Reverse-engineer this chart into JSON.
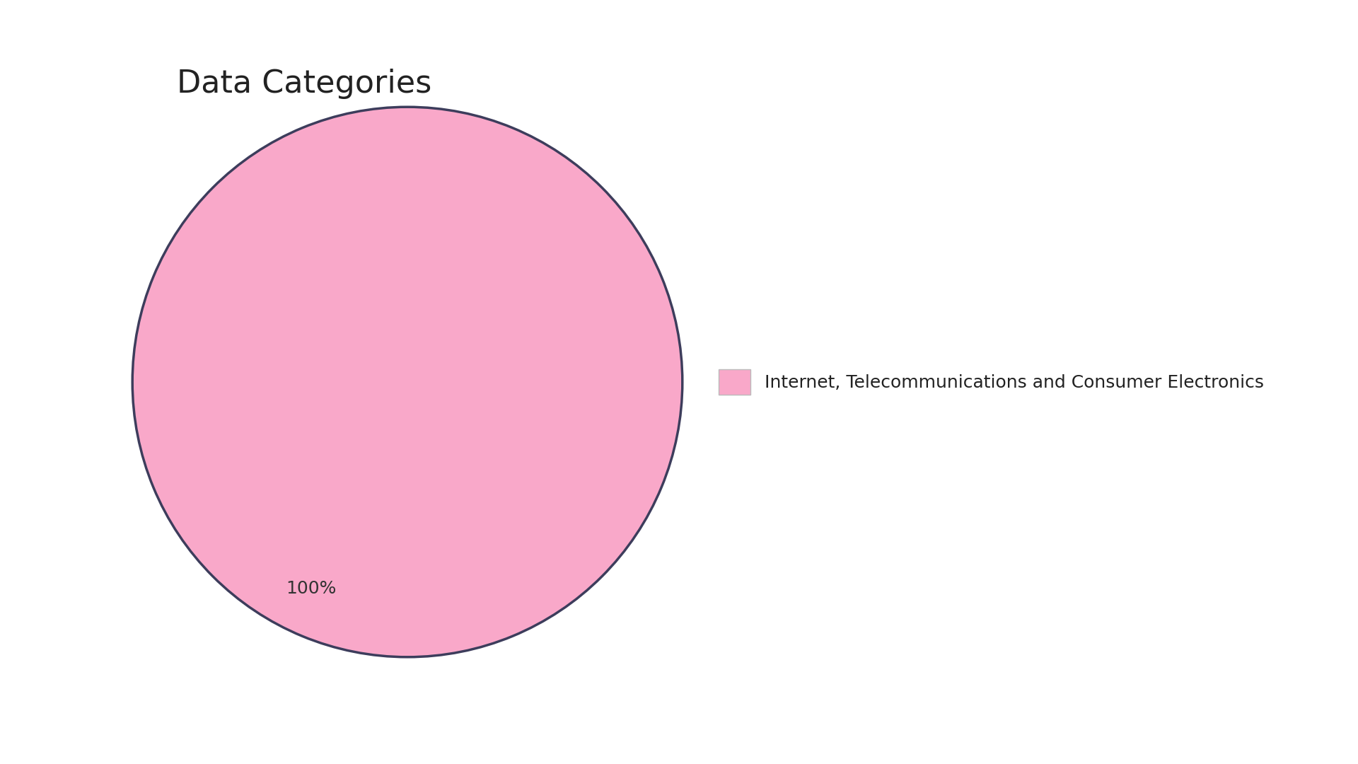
{
  "title": "Data Categories",
  "slices": [
    100
  ],
  "labels": [
    "Internet, Telecommunications and Consumer Electronics"
  ],
  "colors": [
    "#F9A8C9"
  ],
  "edge_color": "#3d3d5c",
  "edge_width": 2.5,
  "background_color": "#ffffff",
  "title_fontsize": 32,
  "title_color": "#222222",
  "legend_fontsize": 18,
  "autopct_fontsize": 18,
  "autopct_color": "#333333",
  "pctdistance": 0.82
}
